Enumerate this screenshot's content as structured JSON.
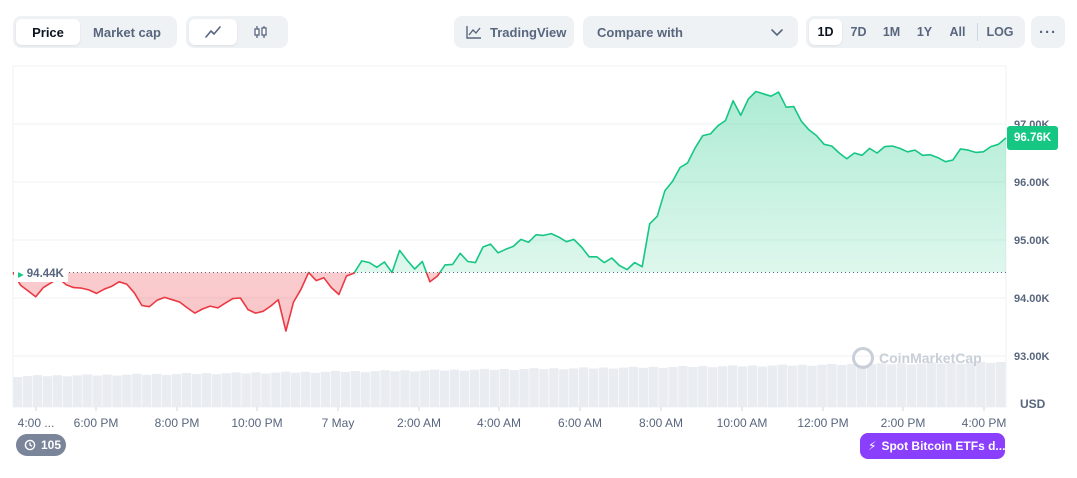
{
  "toolbar": {
    "price_tab": "Price",
    "market_cap_tab": "Market cap",
    "line_icon": "line-chart-icon",
    "candle_icon": "candlestick-icon",
    "tradingview_label": "TradingView",
    "compare_label": "Compare with",
    "ranges": [
      "1D",
      "7D",
      "1M",
      "1Y",
      "All"
    ],
    "log_label": "LOG",
    "more_label": "···"
  },
  "current_price_label": "96.76K",
  "open_price_label": "94.44K",
  "currency_label": "USD",
  "watermark": "CoinMarketCap",
  "events_count": "105",
  "etf_label": "Spot Bitcoin ETFs d...",
  "colors": {
    "up": "#16c784",
    "down": "#ea3943",
    "etf": "#8a3ffc"
  },
  "chart_data": {
    "type": "area",
    "y_ticks": [
      "97.00K",
      "96.00K",
      "95.00K",
      "94.00K",
      "93.00K"
    ],
    "x_ticks": [
      "4:00 ...",
      "6:00 PM",
      "8:00 PM",
      "10:00 PM",
      "7 May",
      "2:00 AM",
      "4:00 AM",
      "6:00 AM",
      "8:00 AM",
      "10:00 AM",
      "12:00 PM",
      "2:00 PM",
      "4:00 PM"
    ],
    "ylim": [
      92750,
      97800
    ],
    "baseline": 94440,
    "values": [
      94440,
      94220,
      94120,
      94020,
      94180,
      94260,
      94340,
      94230,
      94180,
      94170,
      94140,
      94080,
      94150,
      94200,
      94280,
      94240,
      94090,
      93870,
      93850,
      93960,
      94010,
      93970,
      93930,
      93830,
      93740,
      93810,
      93860,
      93830,
      93910,
      93990,
      94000,
      93800,
      93740,
      93770,
      93860,
      93970,
      93430,
      93930,
      94150,
      94440,
      94300,
      94350,
      94180,
      94060,
      94380,
      94430,
      94640,
      94610,
      94530,
      94620,
      94440,
      94820,
      94650,
      94500,
      94630,
      94280,
      94380,
      94570,
      94580,
      94770,
      94630,
      94610,
      94880,
      94930,
      94780,
      94840,
      94890,
      95010,
      94960,
      95090,
      95080,
      95110,
      95050,
      94970,
      95010,
      94880,
      94710,
      94710,
      94610,
      94690,
      94560,
      94490,
      94610,
      94540,
      95280,
      95410,
      95850,
      96010,
      96250,
      96330,
      96590,
      96800,
      96830,
      96970,
      97060,
      97400,
      97150,
      97430,
      97560,
      97520,
      97480,
      97550,
      97290,
      97300,
      97050,
      96900,
      96800,
      96650,
      96620,
      96500,
      96400,
      96500,
      96460,
      96580,
      96500,
      96610,
      96620,
      96580,
      96520,
      96550,
      96460,
      96470,
      96420,
      96350,
      96380,
      96570,
      96550,
      96510,
      96520,
      96610,
      96650,
      96760
    ]
  }
}
